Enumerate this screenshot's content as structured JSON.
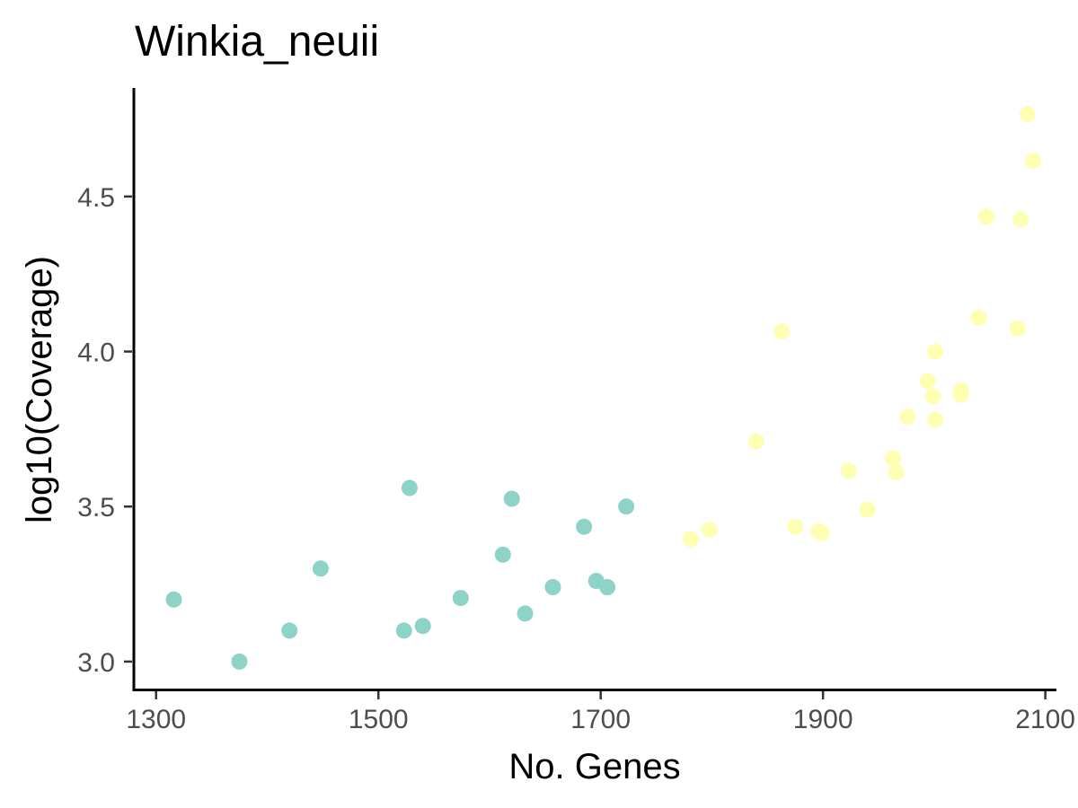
{
  "chart_data": {
    "type": "scatter",
    "title": "Winkia_neuii",
    "xlabel": "No. Genes",
    "ylabel": "log10(Coverage)",
    "xlim": [
      1280,
      2110
    ],
    "ylim": [
      2.91,
      4.85
    ],
    "x_ticks": [
      1300,
      1500,
      1700,
      1900,
      2100
    ],
    "y_ticks": [
      3.0,
      3.5,
      4.0,
      4.5
    ],
    "x_tick_labels": [
      "1300",
      "1500",
      "1700",
      "1900",
      "2100"
    ],
    "y_tick_labels": [
      "3.0",
      "3.5",
      "4.0",
      "4.5"
    ],
    "grid": false,
    "legend": "none",
    "series": [
      {
        "color": "#8dd3c7",
        "points": [
          {
            "x": 1316,
            "y": 3.2
          },
          {
            "x": 1375,
            "y": 3.0
          },
          {
            "x": 1420,
            "y": 3.1
          },
          {
            "x": 1448,
            "y": 3.3
          },
          {
            "x": 1523,
            "y": 3.1
          },
          {
            "x": 1528,
            "y": 3.56
          },
          {
            "x": 1540,
            "y": 3.115
          },
          {
            "x": 1574,
            "y": 3.205
          },
          {
            "x": 1612,
            "y": 3.345
          },
          {
            "x": 1620,
            "y": 3.525
          },
          {
            "x": 1632,
            "y": 3.155
          },
          {
            "x": 1657,
            "y": 3.24
          },
          {
            "x": 1685,
            "y": 3.435
          },
          {
            "x": 1696,
            "y": 3.26
          },
          {
            "x": 1706,
            "y": 3.24
          },
          {
            "x": 1723,
            "y": 3.5
          }
        ]
      },
      {
        "color": "#ffffb3",
        "points": [
          {
            "x": 1781,
            "y": 3.395
          },
          {
            "x": 1798,
            "y": 3.425
          },
          {
            "x": 1840,
            "y": 3.71
          },
          {
            "x": 1863,
            "y": 4.065
          },
          {
            "x": 1875,
            "y": 3.435
          },
          {
            "x": 1896,
            "y": 3.42
          },
          {
            "x": 1899,
            "y": 3.415
          },
          {
            "x": 1923,
            "y": 3.615
          },
          {
            "x": 1940,
            "y": 3.49
          },
          {
            "x": 1963,
            "y": 3.655
          },
          {
            "x": 1966,
            "y": 3.61
          },
          {
            "x": 1976,
            "y": 3.79
          },
          {
            "x": 1994,
            "y": 3.905
          },
          {
            "x": 1999,
            "y": 3.855
          },
          {
            "x": 2001,
            "y": 4.0
          },
          {
            "x": 2001,
            "y": 3.78
          },
          {
            "x": 2024,
            "y": 3.875
          },
          {
            "x": 2024,
            "y": 3.86
          },
          {
            "x": 2040,
            "y": 4.11
          },
          {
            "x": 2047,
            "y": 4.435
          },
          {
            "x": 2075,
            "y": 4.075
          },
          {
            "x": 2078,
            "y": 4.425
          },
          {
            "x": 2084,
            "y": 4.765
          },
          {
            "x": 2089,
            "y": 4.615
          }
        ]
      }
    ]
  }
}
